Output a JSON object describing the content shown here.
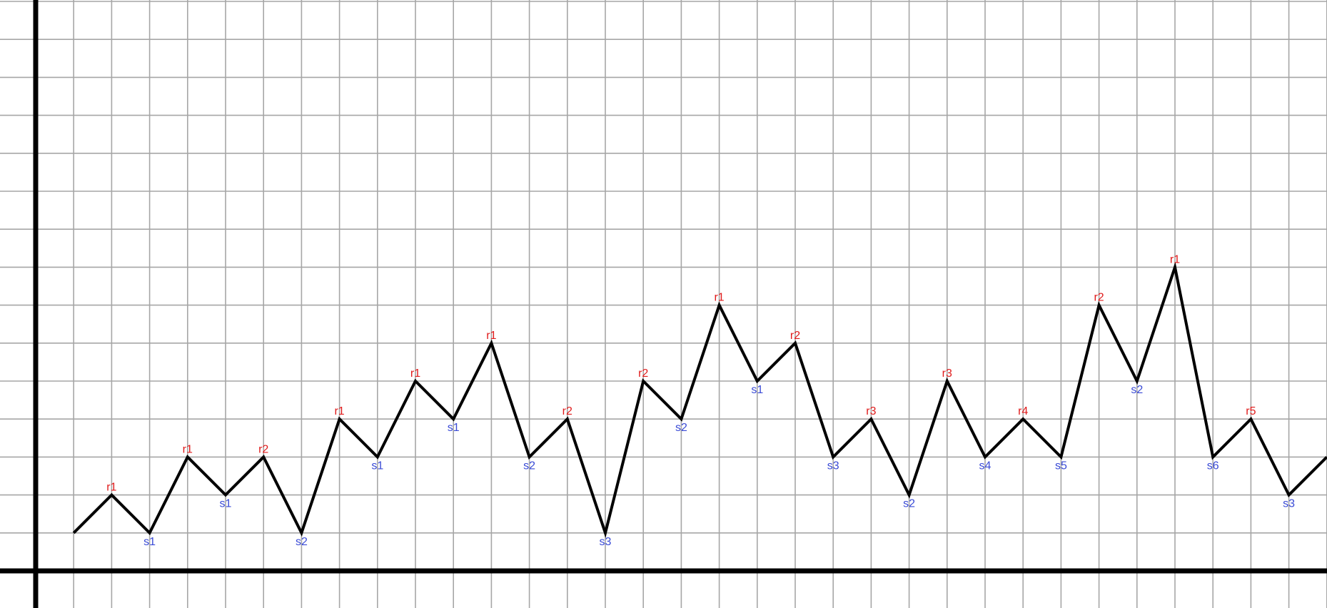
{
  "colors": {
    "grid": "#a6a6a6",
    "axis": "#000000",
    "line": "#000000",
    "resistance_label": "#e01b1b",
    "support_label": "#3a4bd6"
  },
  "chart_data": {
    "type": "line",
    "title": "",
    "xlabel": "",
    "ylabel": "",
    "grid": true,
    "xlim": [
      0,
      34
    ],
    "ylim": [
      0,
      15
    ],
    "points": [
      {
        "x": 1,
        "y": 1,
        "label": ""
      },
      {
        "x": 2,
        "y": 2,
        "label": "r1"
      },
      {
        "x": 3,
        "y": 1,
        "label": "s1"
      },
      {
        "x": 4,
        "y": 3,
        "label": "r1"
      },
      {
        "x": 5,
        "y": 2,
        "label": "s1"
      },
      {
        "x": 6,
        "y": 3,
        "label": "r2"
      },
      {
        "x": 7,
        "y": 1,
        "label": "s2"
      },
      {
        "x": 8,
        "y": 4,
        "label": "r1"
      },
      {
        "x": 9,
        "y": 3,
        "label": "s1"
      },
      {
        "x": 10,
        "y": 5,
        "label": "r1"
      },
      {
        "x": 11,
        "y": 4,
        "label": "s1"
      },
      {
        "x": 12,
        "y": 6,
        "label": "r1"
      },
      {
        "x": 13,
        "y": 3,
        "label": "s2"
      },
      {
        "x": 14,
        "y": 4,
        "label": "r2"
      },
      {
        "x": 15,
        "y": 1,
        "label": "s3"
      },
      {
        "x": 16,
        "y": 5,
        "label": "r2"
      },
      {
        "x": 17,
        "y": 4,
        "label": "s2"
      },
      {
        "x": 18,
        "y": 7,
        "label": "r1"
      },
      {
        "x": 19,
        "y": 5,
        "label": "s1"
      },
      {
        "x": 20,
        "y": 6,
        "label": "r2"
      },
      {
        "x": 21,
        "y": 3,
        "label": "s3"
      },
      {
        "x": 22,
        "y": 4,
        "label": "r3"
      },
      {
        "x": 23,
        "y": 2,
        "label": "s2"
      },
      {
        "x": 24,
        "y": 5,
        "label": "r3"
      },
      {
        "x": 25,
        "y": 3,
        "label": "s4"
      },
      {
        "x": 26,
        "y": 4,
        "label": "r4"
      },
      {
        "x": 27,
        "y": 3,
        "label": "s5"
      },
      {
        "x": 28,
        "y": 7,
        "label": "r2"
      },
      {
        "x": 29,
        "y": 5,
        "label": "s2"
      },
      {
        "x": 30,
        "y": 8,
        "label": "r1"
      },
      {
        "x": 31,
        "y": 3,
        "label": "s6"
      },
      {
        "x": 32,
        "y": 4,
        "label": "r5"
      },
      {
        "x": 33,
        "y": 2,
        "label": "s3"
      },
      {
        "x": 34,
        "y": 3,
        "label": ""
      }
    ]
  }
}
